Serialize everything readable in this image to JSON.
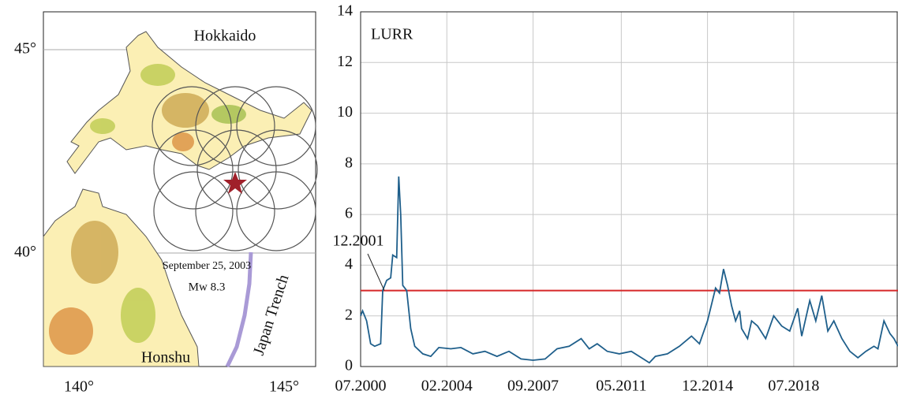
{
  "map": {
    "regions": [
      "Hokkaido",
      "Honshu"
    ],
    "trench_label": "Japan Trench",
    "event_date": "September 25, 2003",
    "event_magnitude": "Mw 8.3",
    "lat_labels": [
      "45°",
      "40°"
    ],
    "lon_labels": [
      "140°",
      "145°"
    ]
  },
  "chart_data": {
    "type": "line",
    "y_label": "LURR",
    "x": [
      "07.2000",
      "08.2000",
      "10.2000",
      "12.2000",
      "02.2001",
      "05.2001",
      "06.2001",
      "08.2001",
      "10.2001",
      "11.2001",
      "01.2002",
      "02.2002",
      "03.2002",
      "04.2002",
      "06.2002",
      "08.2002",
      "10.2002",
      "02.2003",
      "06.2003",
      "10.2003",
      "04.2004",
      "09.2004",
      "03.2005",
      "09.2005",
      "03.2006",
      "09.2006",
      "03.2007",
      "09.2007",
      "03.2008",
      "09.2008",
      "03.2009",
      "09.2009",
      "01.2010",
      "05.2010",
      "10.2010",
      "04.2011",
      "10.2011",
      "04.2012",
      "07.2012",
      "10.2012",
      "04.2013",
      "10.2013",
      "04.2014",
      "08.2014",
      "12.2014",
      "04.2015",
      "06.2015",
      "08.2015",
      "10.2015",
      "12.2015",
      "02.2016",
      "04.2016",
      "05.2016",
      "08.2016",
      "10.2016",
      "01.2017",
      "05.2017",
      "09.2017",
      "01.2018",
      "05.2018",
      "09.2018",
      "11.2018",
      "03.2019",
      "06.2019",
      "09.2019",
      "12.2019",
      "03.2020",
      "07.2020",
      "11.2020",
      "03.2021",
      "07.2021",
      "11.2021",
      "01.2022",
      "04.2022",
      "07.2022",
      "09.2022",
      "11.2022"
    ],
    "series": [
      {
        "color": "#1f5f8b",
        "values": [
          2.0,
          2.2,
          1.8,
          0.9,
          0.8,
          0.9,
          3.0,
          3.4,
          3.5,
          4.4,
          4.3,
          7.5,
          6.0,
          3.2,
          3.0,
          1.5,
          0.8,
          0.5,
          0.4,
          0.75,
          0.7,
          0.75,
          0.5,
          0.6,
          0.4,
          0.6,
          0.3,
          0.25,
          0.3,
          0.7,
          0.8,
          1.1,
          0.7,
          0.9,
          0.6,
          0.5,
          0.6,
          0.3,
          0.15,
          0.4,
          0.5,
          0.8,
          1.2,
          0.9,
          1.8,
          3.1,
          2.9,
          3.85,
          3.2,
          2.4,
          1.8,
          2.2,
          1.5,
          1.1,
          1.8,
          1.6,
          1.1,
          2.0,
          1.6,
          1.4,
          2.3,
          1.2,
          2.6,
          1.8,
          2.8,
          1.4,
          1.8,
          1.1,
          0.6,
          0.35,
          0.6,
          0.8,
          0.7,
          1.8,
          1.3,
          1.1,
          0.8
        ]
      }
    ],
    "xlim": [
      "07.2000",
      "11.2022"
    ],
    "xticks": [
      "07.2000",
      "02.2004",
      "09.2007",
      "05.2011",
      "12.2014",
      "07.2018"
    ],
    "ylim": [
      0,
      14
    ],
    "yticks": [
      0,
      2,
      4,
      6,
      8,
      10,
      12,
      14
    ],
    "grid": true,
    "threshold": {
      "value": 3,
      "color": "#d62728"
    },
    "annotation": "12.2001"
  }
}
